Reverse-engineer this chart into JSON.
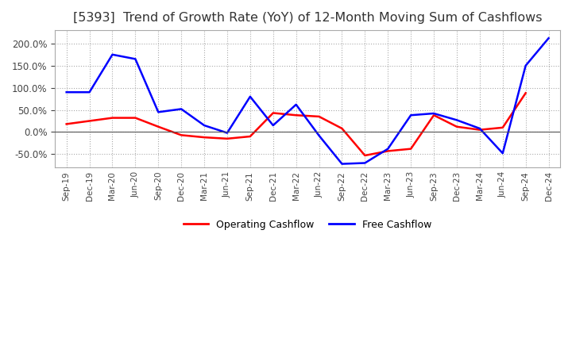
{
  "title": "[5393]  Trend of Growth Rate (YoY) of 12-Month Moving Sum of Cashflows",
  "title_fontsize": 11.5,
  "title_color": "#333333",
  "title_fontweight": "normal",
  "ylim": [
    -80,
    230
  ],
  "yticks": [
    -50.0,
    0.0,
    50.0,
    100.0,
    150.0,
    200.0
  ],
  "background_color": "#ffffff",
  "grid_color": "#aaaaaa",
  "grid_style": "dotted",
  "legend": [
    "Operating Cashflow",
    "Free Cashflow"
  ],
  "legend_colors": [
    "#ff0000",
    "#0000ff"
  ],
  "x_labels": [
    "Sep-19",
    "Dec-19",
    "Mar-20",
    "Jun-20",
    "Sep-20",
    "Dec-20",
    "Mar-21",
    "Jun-21",
    "Sep-21",
    "Dec-21",
    "Mar-22",
    "Jun-22",
    "Sep-22",
    "Dec-22",
    "Mar-23",
    "Jun-23",
    "Sep-23",
    "Dec-23",
    "Mar-24",
    "Jun-24",
    "Sep-24",
    "Dec-24"
  ],
  "operating_cashflow": [
    18,
    25,
    32,
    32,
    12,
    -7,
    -12,
    -15,
    -10,
    43,
    38,
    35,
    8,
    -53,
    -43,
    -38,
    38,
    12,
    5,
    10,
    88,
    null
  ],
  "free_cashflow": [
    90,
    90,
    175,
    165,
    45,
    52,
    15,
    -2,
    80,
    15,
    62,
    -8,
    -72,
    -70,
    -38,
    38,
    42,
    27,
    8,
    -48,
    150,
    212
  ]
}
